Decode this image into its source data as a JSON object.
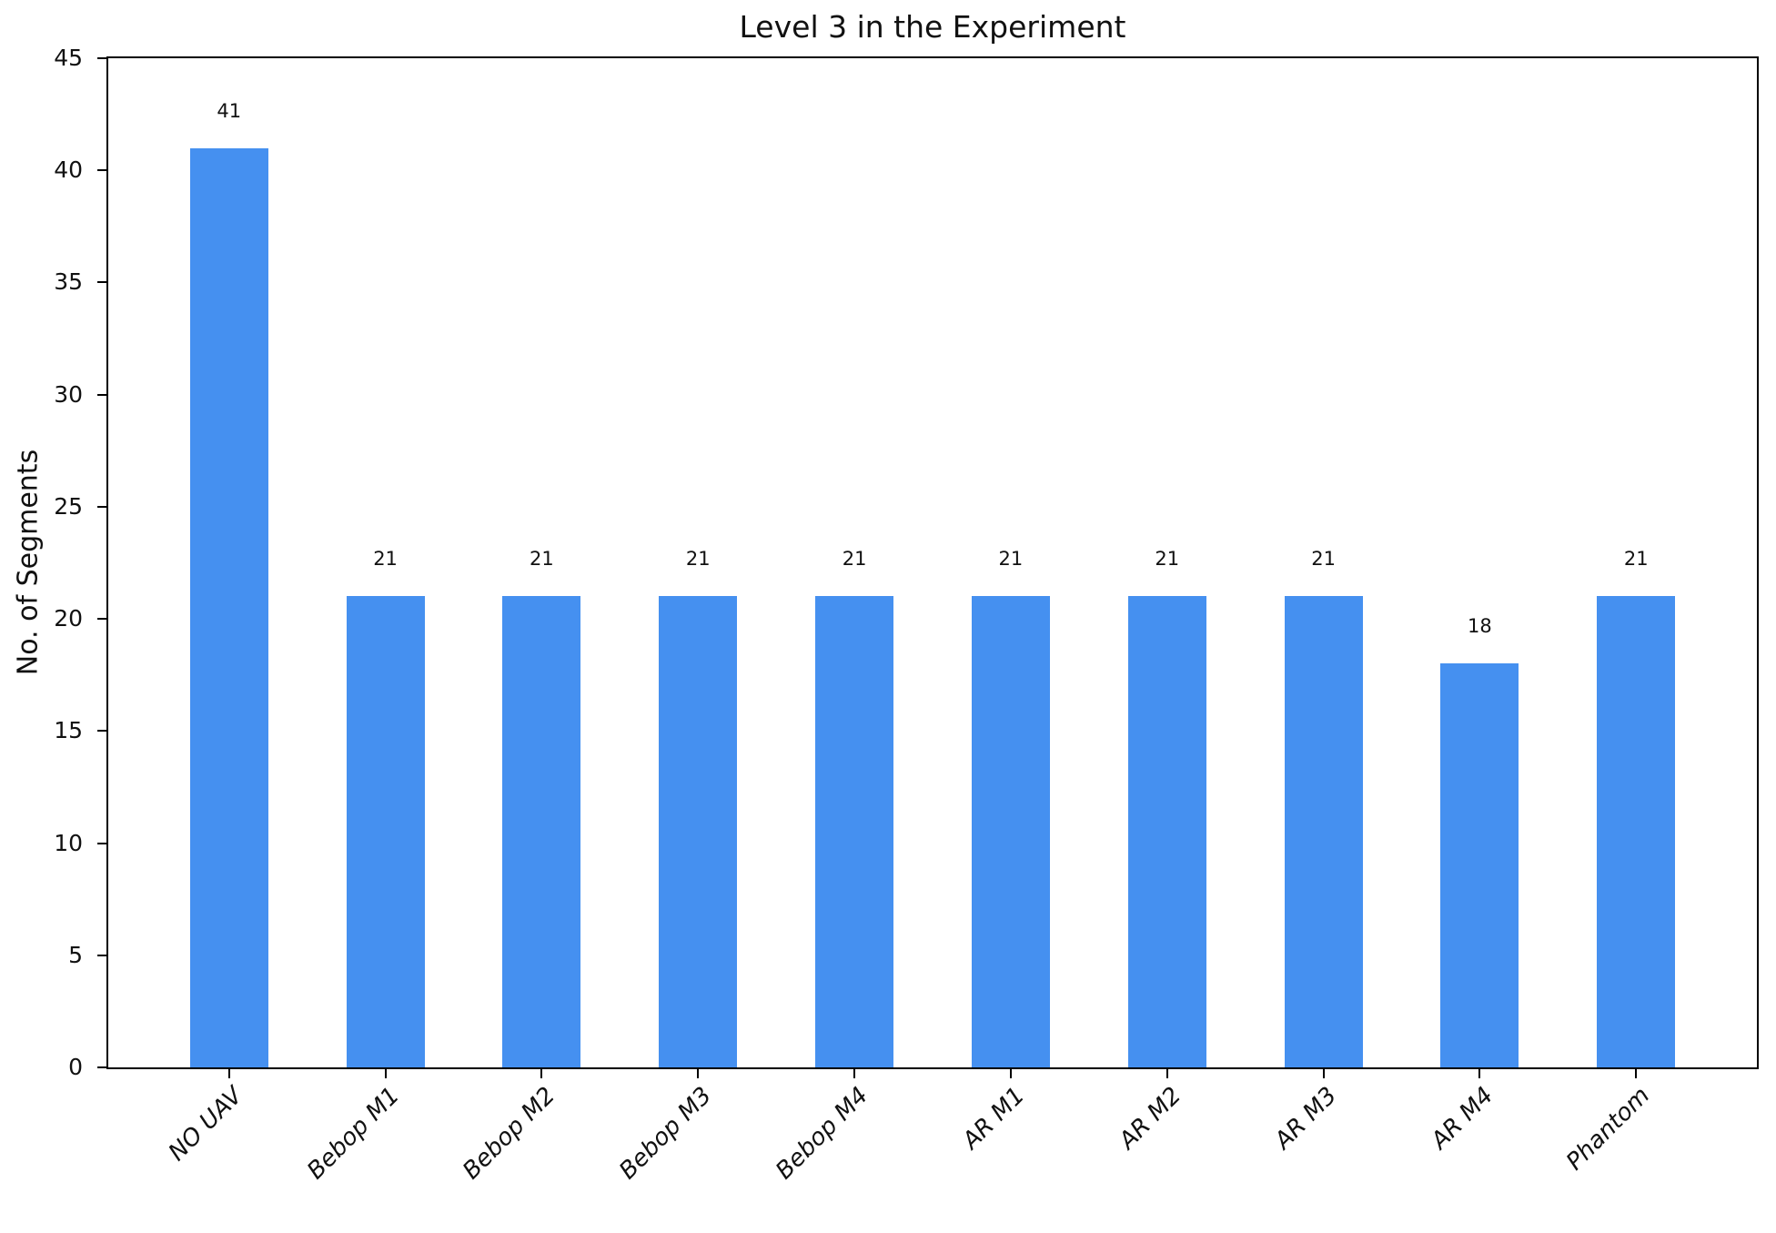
{
  "chart_data": {
    "type": "bar",
    "title": "Level 3 in the Experiment",
    "xlabel": "",
    "ylabel": "No. of Segments",
    "categories": [
      "NO UAV",
      "Bebop M1",
      "Bebop M2",
      "Bebop M3",
      "Bebop M4",
      "AR M1",
      "AR M2",
      "AR M3",
      "AR M4",
      "Phantom"
    ],
    "values": [
      41,
      21,
      21,
      21,
      21,
      21,
      21,
      21,
      18,
      21
    ],
    "bar_value_labels": [
      "41",
      "21",
      "21",
      "21",
      "21",
      "21",
      "21",
      "21",
      "18",
      "21"
    ],
    "bar_color": "#4590F0",
    "axis_color": "#000000",
    "text_color": "#111111",
    "ylim": [
      0,
      45
    ],
    "yticks": [
      0,
      5,
      10,
      15,
      20,
      25,
      30,
      35,
      40,
      45
    ],
    "grid": false,
    "legend": "none",
    "x_tick_label_rotation_deg": 45,
    "x_tick_label_style": "italic",
    "bar_width_data_units": 0.5
  }
}
